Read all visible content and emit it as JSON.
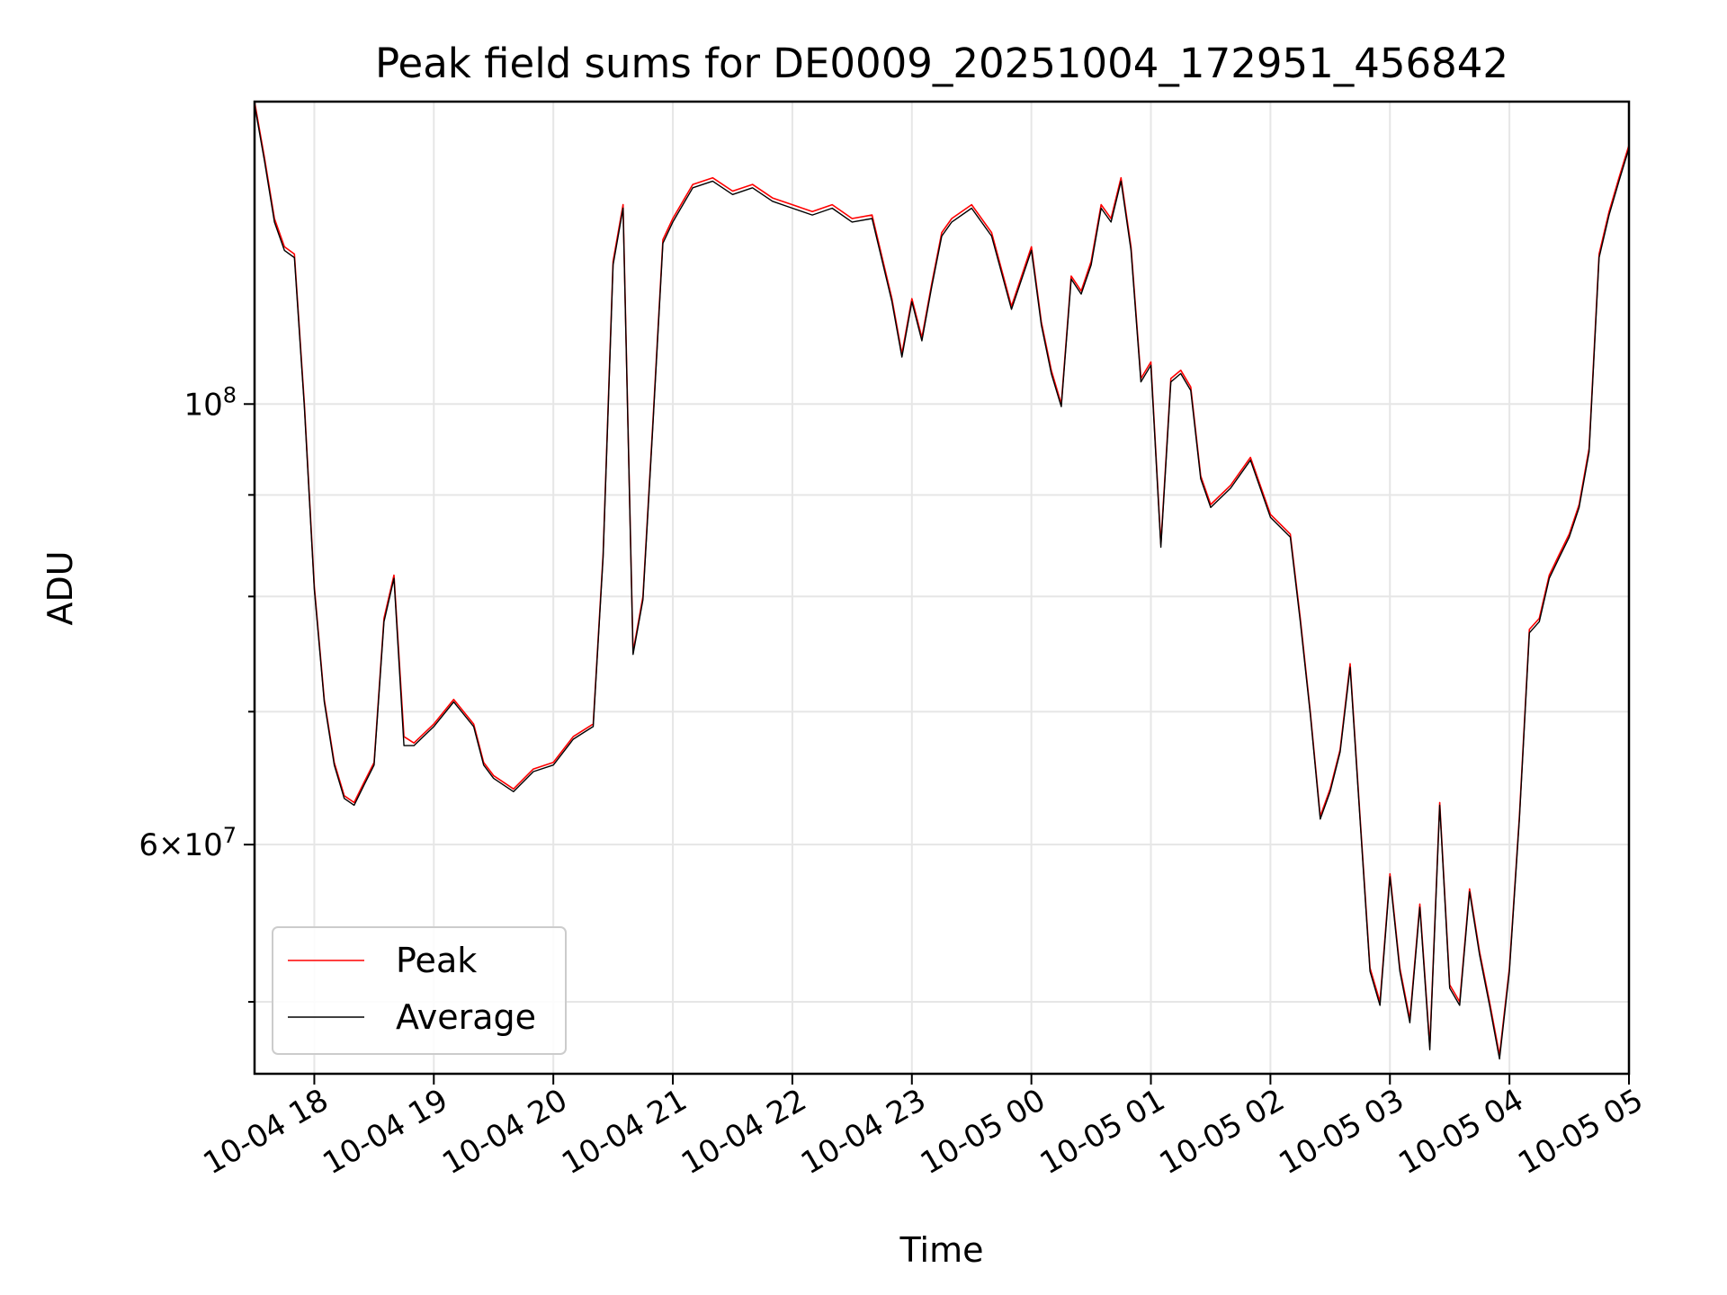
{
  "chart_data": {
    "type": "line",
    "title": "Peak field sums for DE0009_20251004_172951_456842",
    "xlabel": "Time",
    "ylabel": "ADU",
    "yscale": "log",
    "grid": true,
    "legend_position": "lower-left",
    "x_ticks": [
      "10-04 18",
      "10-04 19",
      "10-04 20",
      "10-04 21",
      "10-04 22",
      "10-04 23",
      "10-05 00",
      "10-05 01",
      "10-05 02",
      "10-05 03",
      "10-05 04",
      "10-05 05"
    ],
    "x_range": [
      "2025-10-04 17:30",
      "2025-10-05 05:00"
    ],
    "y_range": [
      46000000,
      142000000
    ],
    "y_major_ticks": [
      {
        "value": 100000000,
        "base": "10",
        "exp": "8",
        "mantissa": ""
      },
      {
        "value": 60000000,
        "base": "10",
        "exp": "7",
        "mantissa": "6"
      }
    ],
    "y_minor_ticks": [
      50000000,
      70000000,
      80000000,
      90000000
    ],
    "series": [
      {
        "name": "Peak",
        "color": "#ff0000",
        "x": [
          "2025-10-04 17:30",
          "2025-10-04 17:35",
          "2025-10-04 17:40",
          "2025-10-04 17:45",
          "2025-10-04 17:50",
          "2025-10-04 17:55",
          "2025-10-04 18:00",
          "2025-10-04 18:05",
          "2025-10-04 18:10",
          "2025-10-04 18:15",
          "2025-10-04 18:20",
          "2025-10-04 18:25",
          "2025-10-04 18:30",
          "2025-10-04 18:35",
          "2025-10-04 18:40",
          "2025-10-04 18:45",
          "2025-10-04 18:50",
          "2025-10-04 19:00",
          "2025-10-04 19:10",
          "2025-10-04 19:20",
          "2025-10-04 19:25",
          "2025-10-04 19:30",
          "2025-10-04 19:40",
          "2025-10-04 19:50",
          "2025-10-04 20:00",
          "2025-10-04 20:10",
          "2025-10-04 20:15",
          "2025-10-04 20:20",
          "2025-10-04 20:25",
          "2025-10-04 20:30",
          "2025-10-04 20:35",
          "2025-10-04 20:40",
          "2025-10-04 20:45",
          "2025-10-04 20:50",
          "2025-10-04 20:55",
          "2025-10-04 21:00",
          "2025-10-04 21:10",
          "2025-10-04 21:20",
          "2025-10-04 21:30",
          "2025-10-04 21:40",
          "2025-10-04 21:50",
          "2025-10-04 22:00",
          "2025-10-04 22:10",
          "2025-10-04 22:20",
          "2025-10-04 22:30",
          "2025-10-04 22:40",
          "2025-10-04 22:50",
          "2025-10-04 22:55",
          "2025-10-04 23:00",
          "2025-10-04 23:05",
          "2025-10-04 23:10",
          "2025-10-04 23:15",
          "2025-10-04 23:20",
          "2025-10-04 23:30",
          "2025-10-04 23:40",
          "2025-10-04 23:50",
          "2025-10-05 00:00",
          "2025-10-05 00:05",
          "2025-10-05 00:10",
          "2025-10-05 00:15",
          "2025-10-05 00:20",
          "2025-10-05 00:25",
          "2025-10-05 00:30",
          "2025-10-05 00:35",
          "2025-10-05 00:40",
          "2025-10-05 00:45",
          "2025-10-05 00:50",
          "2025-10-05 00:55",
          "2025-10-05 01:00",
          "2025-10-05 01:05",
          "2025-10-05 01:10",
          "2025-10-05 01:15",
          "2025-10-05 01:20",
          "2025-10-05 01:25",
          "2025-10-05 01:30",
          "2025-10-05 01:40",
          "2025-10-05 01:50",
          "2025-10-05 02:00",
          "2025-10-05 02:10",
          "2025-10-05 02:15",
          "2025-10-05 02:20",
          "2025-10-05 02:25",
          "2025-10-05 02:30",
          "2025-10-05 02:35",
          "2025-10-05 02:40",
          "2025-10-05 02:45",
          "2025-10-05 02:50",
          "2025-10-05 02:55",
          "2025-10-05 03:00",
          "2025-10-05 03:05",
          "2025-10-05 03:10",
          "2025-10-05 03:15",
          "2025-10-05 03:20",
          "2025-10-05 03:25",
          "2025-10-05 03:30",
          "2025-10-05 03:35",
          "2025-10-05 03:40",
          "2025-10-05 03:45",
          "2025-10-05 03:50",
          "2025-10-05 03:55",
          "2025-10-05 04:00",
          "2025-10-05 04:05",
          "2025-10-05 04:10",
          "2025-10-05 04:15",
          "2025-10-05 04:20",
          "2025-10-05 04:25",
          "2025-10-05 04:30",
          "2025-10-05 04:35",
          "2025-10-05 04:40",
          "2025-10-05 04:45",
          "2025-10-05 04:50",
          "2025-10-05 04:55",
          "2025-10-05 05:00"
        ],
        "y": [
          142000000,
          133000000,
          124000000,
          120000000,
          119000000,
          100000000,
          81000000,
          71000000,
          66000000,
          63500000,
          63000000,
          64500000,
          66000000,
          78000000,
          82000000,
          68000000,
          67500000,
          69000000,
          71000000,
          69000000,
          66000000,
          65000000,
          64000000,
          65500000,
          66000000,
          68000000,
          68500000,
          69000000,
          84000000,
          118000000,
          126000000,
          75000000,
          80000000,
          98000000,
          121000000,
          124000000,
          129000000,
          130000000,
          128000000,
          129000000,
          127000000,
          126000000,
          125000000,
          126000000,
          124000000,
          124500000,
          113000000,
          106000000,
          113000000,
          108000000,
          115000000,
          122000000,
          124000000,
          126000000,
          122000000,
          112000000,
          120000000,
          110000000,
          104000000,
          100000000,
          116000000,
          114000000,
          118000000,
          126000000,
          124000000,
          130000000,
          120000000,
          103000000,
          105000000,
          85000000,
          103000000,
          104000000,
          102000000,
          92000000,
          89000000,
          91000000,
          94000000,
          88000000,
          86000000,
          78000000,
          70000000,
          62000000,
          64000000,
          67000000,
          74000000,
          62000000,
          52000000,
          50000000,
          58000000,
          52000000,
          49000000,
          56000000,
          47500000,
          63000000,
          51000000,
          50000000,
          57000000,
          53000000,
          50000000,
          47000000,
          52000000,
          62000000,
          77000000,
          78000000,
          82000000,
          84000000,
          86000000,
          89000000,
          95000000,
          119000000,
          125000000,
          130000000,
          135000000
        ]
      },
      {
        "name": "Average",
        "color": "#000000",
        "x": [
          "2025-10-04 17:30",
          "2025-10-04 17:35",
          "2025-10-04 17:40",
          "2025-10-04 17:45",
          "2025-10-04 17:50",
          "2025-10-04 17:55",
          "2025-10-04 18:00",
          "2025-10-04 18:05",
          "2025-10-04 18:10",
          "2025-10-04 18:15",
          "2025-10-04 18:20",
          "2025-10-04 18:25",
          "2025-10-04 18:30",
          "2025-10-04 18:35",
          "2025-10-04 18:40",
          "2025-10-04 18:45",
          "2025-10-04 18:50",
          "2025-10-04 19:00",
          "2025-10-04 19:10",
          "2025-10-04 19:20",
          "2025-10-04 19:25",
          "2025-10-04 19:30",
          "2025-10-04 19:40",
          "2025-10-04 19:50",
          "2025-10-04 20:00",
          "2025-10-04 20:10",
          "2025-10-04 20:15",
          "2025-10-04 20:20",
          "2025-10-04 20:25",
          "2025-10-04 20:30",
          "2025-10-04 20:35",
          "2025-10-04 20:40",
          "2025-10-04 20:45",
          "2025-10-04 20:50",
          "2025-10-04 20:55",
          "2025-10-04 21:00",
          "2025-10-04 21:10",
          "2025-10-04 21:20",
          "2025-10-04 21:30",
          "2025-10-04 21:40",
          "2025-10-04 21:50",
          "2025-10-04 22:00",
          "2025-10-04 22:10",
          "2025-10-04 22:20",
          "2025-10-04 22:30",
          "2025-10-04 22:40",
          "2025-10-04 22:50",
          "2025-10-04 22:55",
          "2025-10-04 23:00",
          "2025-10-04 23:05",
          "2025-10-04 23:10",
          "2025-10-04 23:15",
          "2025-10-04 23:20",
          "2025-10-04 23:30",
          "2025-10-04 23:40",
          "2025-10-04 23:50",
          "2025-10-05 00:00",
          "2025-10-05 00:05",
          "2025-10-05 00:10",
          "2025-10-05 00:15",
          "2025-10-05 00:20",
          "2025-10-05 00:25",
          "2025-10-05 00:30",
          "2025-10-05 00:35",
          "2025-10-05 00:40",
          "2025-10-05 00:45",
          "2025-10-05 00:50",
          "2025-10-05 00:55",
          "2025-10-05 01:00",
          "2025-10-05 01:05",
          "2025-10-05 01:10",
          "2025-10-05 01:15",
          "2025-10-05 01:20",
          "2025-10-05 01:25",
          "2025-10-05 01:30",
          "2025-10-05 01:40",
          "2025-10-05 01:50",
          "2025-10-05 02:00",
          "2025-10-05 02:10",
          "2025-10-05 02:15",
          "2025-10-05 02:20",
          "2025-10-05 02:25",
          "2025-10-05 02:30",
          "2025-10-05 02:35",
          "2025-10-05 02:40",
          "2025-10-05 02:45",
          "2025-10-05 02:50",
          "2025-10-05 02:55",
          "2025-10-05 03:00",
          "2025-10-05 03:05",
          "2025-10-05 03:10",
          "2025-10-05 03:15",
          "2025-10-05 03:20",
          "2025-10-05 03:25",
          "2025-10-05 03:30",
          "2025-10-05 03:35",
          "2025-10-05 03:40",
          "2025-10-05 03:45",
          "2025-10-05 03:50",
          "2025-10-05 03:55",
          "2025-10-05 04:00",
          "2025-10-05 04:05",
          "2025-10-05 04:10",
          "2025-10-05 04:15",
          "2025-10-05 04:20",
          "2025-10-05 04:25",
          "2025-10-05 04:30",
          "2025-10-05 04:35",
          "2025-10-05 04:40",
          "2025-10-05 04:45",
          "2025-10-05 04:50",
          "2025-10-05 04:55",
          "2025-10-05 05:00"
        ],
        "y": [
          141500000,
          132500000,
          123500000,
          119500000,
          118500000,
          99600000,
          80700000,
          70800000,
          65800000,
          63300000,
          62800000,
          64300000,
          65800000,
          77700000,
          81700000,
          67300000,
          67300000,
          68800000,
          70800000,
          68800000,
          65800000,
          64800000,
          63800000,
          65300000,
          65800000,
          67800000,
          68300000,
          68800000,
          83700000,
          117500000,
          125500000,
          74800000,
          79700000,
          97600000,
          120500000,
          123500000,
          128500000,
          129500000,
          127500000,
          128500000,
          126500000,
          125500000,
          124500000,
          125500000,
          123500000,
          124000000,
          112600000,
          105600000,
          112600000,
          107600000,
          114600000,
          121500000,
          123500000,
          125500000,
          121500000,
          111600000,
          119500000,
          109600000,
          103600000,
          99700000,
          115600000,
          113600000,
          117500000,
          125500000,
          123500000,
          129500000,
          119500000,
          102600000,
          104600000,
          84700000,
          102600000,
          103600000,
          101600000,
          91700000,
          88700000,
          90700000,
          93700000,
          87700000,
          85700000,
          77700000,
          69800000,
          61800000,
          63800000,
          66800000,
          73700000,
          61800000,
          51800000,
          49800000,
          57800000,
          51800000,
          48800000,
          55800000,
          47300000,
          62800000,
          50800000,
          49800000,
          56800000,
          52800000,
          49800000,
          46800000,
          51800000,
          61800000,
          76700000,
          77700000,
          81700000,
          83700000,
          85700000,
          88700000,
          94600000,
          118500000,
          124500000,
          129500000,
          134500000
        ]
      }
    ]
  }
}
